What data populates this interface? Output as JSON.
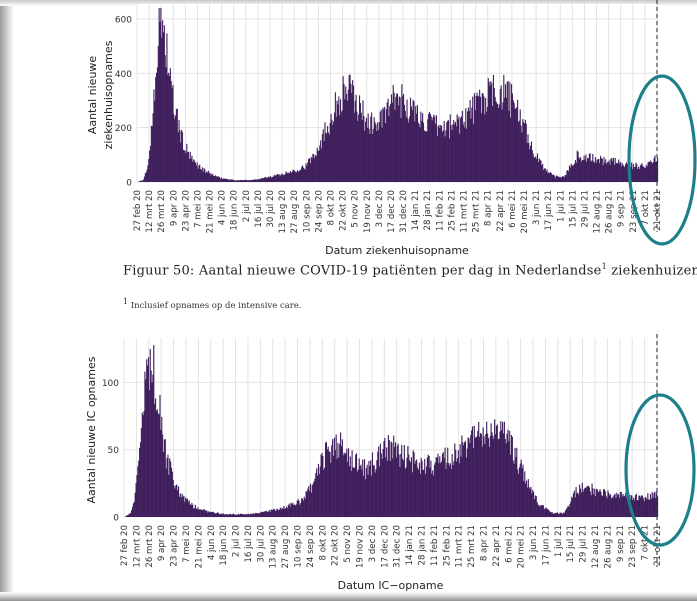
{
  "caption": {
    "figure_label": "Figuur 50:",
    "text": "Aantal nieuwe COVID-19 patiënten per dag in Nederlandse",
    "sup": "1",
    "text_after": " ziekenhuizen."
  },
  "footnote": {
    "sup": "1",
    "text": " Inclusief opnames op de intensive care."
  },
  "colors": {
    "bar": "#3f1f5c",
    "annotation": "#1d7f8a",
    "grid": "#e3e3e3",
    "vline": "#222222"
  },
  "chart_data": [
    {
      "type": "bar",
      "xlabel": "Datum ziekenhuisopname",
      "ylabel": "Aantal nieuwe ziekenhuisopnames",
      "ylabel_lines": [
        "Aantal nieuwe",
        "ziekenhuisopnames"
      ],
      "ylim": [
        0,
        640
      ],
      "yticks": [
        0,
        200,
        400,
        600
      ],
      "grid": true,
      "x_start": "2020-02-27",
      "x_end": "2021-10-21",
      "vline_date": "2021-10-21",
      "annotation": "teal ellipse around latest weeks",
      "xtick_labels": [
        "27 feb 20",
        "12 mrt 20",
        "26 mrt 20",
        "9 apr 20",
        "23 apr 20",
        "7 mei 20",
        "21 mei 20",
        "4 jun 20",
        "18 jun 20",
        "2 jul 20",
        "16 jul 20",
        "30 jul 20",
        "13 aug 20",
        "27 aug 20",
        "10 sep 20",
        "24 sep 20",
        "8 okt 20",
        "22 okt 20",
        "5 nov 20",
        "19 nov 20",
        "3 dec 20",
        "17 dec 20",
        "31 dec 20",
        "14 jan 21",
        "28 jan 21",
        "11 feb 21",
        "25 feb 21",
        "11 mrt 21",
        "25 mrt 21",
        "8 apr 21",
        "22 apr 21",
        "6 mei 21",
        "20 mei 21",
        "3 jun 21",
        "17 jun 21",
        "1 jul 21",
        "15 jul 21",
        "29 jul 21",
        "12 aug 21",
        "26 aug 21",
        "9 sep 21",
        "23 sep 21",
        "7 okt 21",
        "21 okt 21"
      ],
      "daily_anchors": [
        [
          "2020-02-27",
          0
        ],
        [
          "2020-03-05",
          8
        ],
        [
          "2020-03-10",
          60
        ],
        [
          "2020-03-14",
          180
        ],
        [
          "2020-03-18",
          380
        ],
        [
          "2020-03-22",
          530
        ],
        [
          "2020-03-25",
          600
        ],
        [
          "2020-03-27",
          590
        ],
        [
          "2020-04-01",
          480
        ],
        [
          "2020-04-06",
          330
        ],
        [
          "2020-04-12",
          240
        ],
        [
          "2020-04-20",
          140
        ],
        [
          "2020-04-30",
          80
        ],
        [
          "2020-05-15",
          40
        ],
        [
          "2020-06-01",
          15
        ],
        [
          "2020-06-20",
          6
        ],
        [
          "2020-07-10",
          8
        ],
        [
          "2020-08-01",
          20
        ],
        [
          "2020-08-20",
          35
        ],
        [
          "2020-09-10",
          60
        ],
        [
          "2020-09-25",
          140
        ],
        [
          "2020-10-08",
          240
        ],
        [
          "2020-10-20",
          320
        ],
        [
          "2020-10-28",
          345
        ],
        [
          "2020-11-08",
          280
        ],
        [
          "2020-11-20",
          220
        ],
        [
          "2020-12-01",
          210
        ],
        [
          "2020-12-12",
          260
        ],
        [
          "2020-12-22",
          310
        ],
        [
          "2021-01-02",
          290
        ],
        [
          "2021-01-15",
          245
        ],
        [
          "2021-02-01",
          210
        ],
        [
          "2021-02-15",
          195
        ],
        [
          "2021-03-01",
          215
        ],
        [
          "2021-03-15",
          250
        ],
        [
          "2021-03-28",
          290
        ],
        [
          "2021-04-10",
          320
        ],
        [
          "2021-04-22",
          335
        ],
        [
          "2021-05-02",
          310
        ],
        [
          "2021-05-12",
          260
        ],
        [
          "2021-05-22",
          180
        ],
        [
          "2021-06-01",
          100
        ],
        [
          "2021-06-12",
          50
        ],
        [
          "2021-06-25",
          20
        ],
        [
          "2021-07-05",
          18
        ],
        [
          "2021-07-12",
          60
        ],
        [
          "2021-07-20",
          95
        ],
        [
          "2021-07-30",
          90
        ],
        [
          "2021-08-15",
          80
        ],
        [
          "2021-09-01",
          75
        ],
        [
          "2021-09-15",
          65
        ],
        [
          "2021-09-25",
          58
        ],
        [
          "2021-10-08",
          65
        ],
        [
          "2021-10-21",
          85
        ]
      ]
    },
    {
      "type": "bar",
      "xlabel": "Datum IC−opname",
      "ylabel": "Aantal nieuwe IC opnames",
      "ylabel_lines": [
        "Aantal nieuwe IC opnames"
      ],
      "ylim": [
        0,
        130
      ],
      "yticks": [
        0,
        50,
        100
      ],
      "grid": true,
      "x_start": "2020-02-27",
      "x_end": "2021-10-21",
      "vline_date": "2021-10-21",
      "annotation": "teal ellipse around latest weeks",
      "xtick_labels": [
        "27 feb 20",
        "12 mrt 20",
        "26 mrt 20",
        "9 apr 20",
        "23 apr 20",
        "7 mei 20",
        "21 mei 20",
        "4 jun 20",
        "18 jun 20",
        "2 jul 20",
        "16 jul 20",
        "30 jul 20",
        "13 aug 20",
        "27 aug 20",
        "10 sep 20",
        "24 sep 20",
        "8 okt 20",
        "22 okt 20",
        "5 nov 20",
        "19 nov 20",
        "3 dec 20",
        "17 dec 20",
        "31 dec 20",
        "14 jan 21",
        "28 jan 21",
        "11 feb 21",
        "25 feb 21",
        "11 mrt 21",
        "25 mrt 21",
        "8 apr 21",
        "22 apr 21",
        "6 mei 21",
        "20 mei 21",
        "3 jun 21",
        "17 jun 21",
        "1 jul 21",
        "15 jul 21",
        "29 jul 21",
        "12 aug 21",
        "26 aug 21",
        "9 sep 21",
        "23 sep 21",
        "7 okt 21",
        "21 okt 21"
      ],
      "daily_anchors": [
        [
          "2020-02-27",
          0
        ],
        [
          "2020-03-05",
          3
        ],
        [
          "2020-03-10",
          15
        ],
        [
          "2020-03-15",
          45
        ],
        [
          "2020-03-20",
          85
        ],
        [
          "2020-03-24",
          110
        ],
        [
          "2020-03-27",
          122
        ],
        [
          "2020-03-30",
          115
        ],
        [
          "2020-04-03",
          95
        ],
        [
          "2020-04-08",
          70
        ],
        [
          "2020-04-14",
          45
        ],
        [
          "2020-04-22",
          28
        ],
        [
          "2020-05-01",
          15
        ],
        [
          "2020-05-15",
          8
        ],
        [
          "2020-06-01",
          4
        ],
        [
          "2020-06-20",
          2
        ],
        [
          "2020-07-15",
          2
        ],
        [
          "2020-08-05",
          4
        ],
        [
          "2020-08-25",
          7
        ],
        [
          "2020-09-15",
          12
        ],
        [
          "2020-09-28",
          25
        ],
        [
          "2020-10-10",
          45
        ],
        [
          "2020-10-22",
          55
        ],
        [
          "2020-11-01",
          52
        ],
        [
          "2020-11-12",
          40
        ],
        [
          "2020-11-25",
          35
        ],
        [
          "2020-12-08",
          42
        ],
        [
          "2020-12-20",
          52
        ],
        [
          "2021-01-02",
          48
        ],
        [
          "2021-01-15",
          42
        ],
        [
          "2021-02-01",
          38
        ],
        [
          "2021-02-15",
          40
        ],
        [
          "2021-03-01",
          45
        ],
        [
          "2021-03-15",
          52
        ],
        [
          "2021-03-28",
          58
        ],
        [
          "2021-04-10",
          62
        ],
        [
          "2021-04-22",
          63
        ],
        [
          "2021-05-02",
          58
        ],
        [
          "2021-05-12",
          48
        ],
        [
          "2021-05-22",
          32
        ],
        [
          "2021-06-01",
          18
        ],
        [
          "2021-06-12",
          8
        ],
        [
          "2021-06-25",
          3
        ],
        [
          "2021-07-08",
          3
        ],
        [
          "2021-07-14",
          10
        ],
        [
          "2021-07-22",
          20
        ],
        [
          "2021-08-01",
          22
        ],
        [
          "2021-08-15",
          19
        ],
        [
          "2021-09-01",
          16
        ],
        [
          "2021-09-20",
          15
        ],
        [
          "2021-10-05",
          14
        ],
        [
          "2021-10-21",
          18
        ]
      ]
    }
  ]
}
